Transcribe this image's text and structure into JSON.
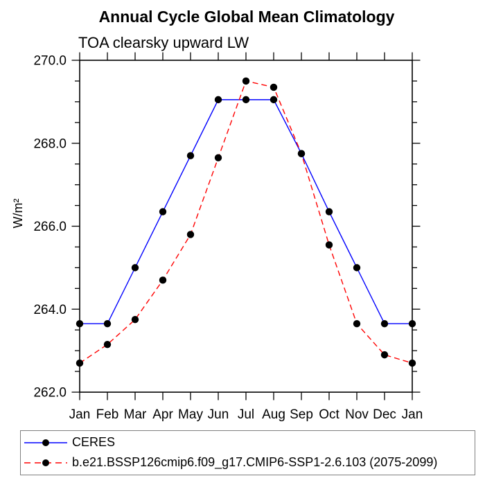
{
  "chart_data": {
    "type": "line",
    "title": "Annual Cycle Global Mean Climatology",
    "subtitle": "TOA clearsky upward LW",
    "ylabel": "W/m²",
    "x_categories": [
      "Jan",
      "Feb",
      "Mar",
      "Apr",
      "May",
      "Jun",
      "Jul",
      "Aug",
      "Sep",
      "Oct",
      "Nov",
      "Dec",
      "Jan"
    ],
    "ylim": [
      262.0,
      270.0
    ],
    "yticks_major": [
      262,
      264,
      266,
      268,
      270
    ],
    "ytick_labels": [
      "262.0",
      "264.0",
      "266.0",
      "268.0",
      "270.0"
    ],
    "ytick_minor_step": 0.5,
    "grid": false,
    "axis_color": "#000000",
    "marker": "filled-circle",
    "legend_position": "bottom-left-box",
    "series": [
      {
        "name": "CERES",
        "line_color": "#0000ff",
        "line_style": "solid",
        "marker_color": "#000000",
        "values": [
          263.65,
          263.65,
          265.0,
          266.35,
          267.7,
          269.05,
          269.05,
          269.05,
          267.75,
          266.35,
          265.0,
          263.65,
          263.65
        ]
      },
      {
        "name": "b.e21.BSSP126cmip6.f09_g17.CMIP6-SSP1-2.6.103 (2075-2099)",
        "line_color": "#ff0000",
        "line_style": "dashed",
        "marker_color": "#000000",
        "values": [
          262.7,
          263.15,
          263.75,
          264.7,
          265.8,
          267.65,
          269.5,
          269.35,
          267.75,
          265.55,
          263.65,
          262.9,
          262.7
        ]
      }
    ]
  }
}
